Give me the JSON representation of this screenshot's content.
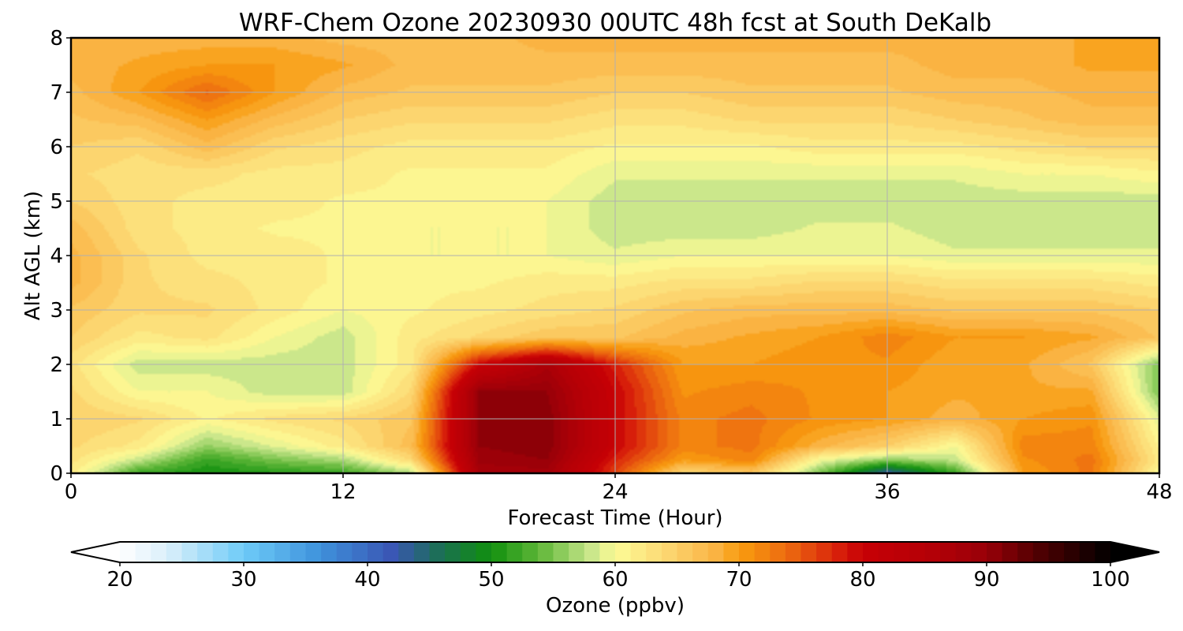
{
  "chart_data": {
    "type": "heatmap",
    "title": "WRF-Chem Ozone  20230930 00UTC 48h fcst at South DeKalb",
    "xlabel": "Forecast Time (Hour)",
    "ylabel": "Alt AGL (km)",
    "xlim": [
      0,
      48
    ],
    "ylim": [
      0,
      8
    ],
    "x_ticks": [
      0,
      12,
      24,
      36,
      48
    ],
    "y_ticks": [
      0,
      1,
      2,
      3,
      4,
      5,
      6,
      7,
      8
    ],
    "grid": true,
    "colorbar": {
      "label": "Ozone  (ppbv)",
      "min": 20,
      "max": 100,
      "ticks": [
        20,
        30,
        40,
        50,
        60,
        70,
        80,
        90,
        100
      ],
      "extend": "both",
      "color_stops": [
        {
          "value": 20,
          "color": "#ffffff"
        },
        {
          "value": 24,
          "color": "#d8eefa"
        },
        {
          "value": 30,
          "color": "#6ecbf8"
        },
        {
          "value": 36,
          "color": "#3f93dc"
        },
        {
          "value": 42,
          "color": "#3a56b4"
        },
        {
          "value": 46,
          "color": "#1a7050"
        },
        {
          "value": 50,
          "color": "#11900e"
        },
        {
          "value": 54,
          "color": "#62b83a"
        },
        {
          "value": 58,
          "color": "#c8e68a"
        },
        {
          "value": 60,
          "color": "#fcfb96"
        },
        {
          "value": 64,
          "color": "#fcd873"
        },
        {
          "value": 68,
          "color": "#fab445"
        },
        {
          "value": 70,
          "color": "#f99d0f"
        },
        {
          "value": 74,
          "color": "#ec6910"
        },
        {
          "value": 78,
          "color": "#d8200a"
        },
        {
          "value": 80,
          "color": "#c70005"
        },
        {
          "value": 86,
          "color": "#b20007"
        },
        {
          "value": 90,
          "color": "#980008"
        },
        {
          "value": 94,
          "color": "#520002"
        },
        {
          "value": 100,
          "color": "#000000"
        }
      ]
    },
    "field": {
      "x": [
        0,
        3,
        6,
        9,
        12,
        15,
        18,
        21,
        24,
        27,
        30,
        33,
        36,
        39,
        42,
        45,
        48
      ],
      "y": [
        0,
        0.25,
        0.5,
        1,
        1.5,
        2,
        2.5,
        3,
        3.5,
        4,
        4.5,
        5,
        5.5,
        6,
        6.5,
        7,
        7.5,
        8
      ],
      "values": [
        [
          62,
          52,
          50,
          51,
          52,
          57,
          88,
          88,
          76,
          64,
          66,
          55,
          42,
          52,
          70,
          73,
          60
        ],
        [
          63,
          58,
          52,
          55,
          57,
          64,
          89,
          90,
          78,
          70,
          72,
          60,
          56,
          58,
          71,
          73,
          62
        ],
        [
          64,
          62,
          56,
          59,
          62,
          67,
          90,
          91,
          80,
          72,
          73,
          68,
          65,
          60,
          72,
          72,
          61
        ],
        [
          65,
          64,
          61,
          63,
          64,
          66,
          90,
          91,
          80,
          72,
          73,
          71,
          70,
          68,
          70,
          71,
          59
        ],
        [
          64,
          60,
          60,
          58,
          58,
          64,
          90,
          90,
          80,
          71,
          72,
          71,
          70,
          69,
          69,
          69,
          55
        ],
        [
          63,
          58,
          58,
          58,
          58,
          62,
          80,
          87,
          78,
          70,
          70,
          71,
          71,
          69,
          69,
          66,
          55
        ],
        [
          65,
          62,
          63,
          60,
          58,
          62,
          64,
          66,
          66,
          68,
          69,
          70,
          72,
          70,
          70,
          69,
          66
        ],
        [
          66,
          64,
          64,
          62,
          60,
          61,
          62,
          63,
          64,
          66,
          67,
          67,
          67,
          66,
          66,
          66,
          65
        ],
        [
          68,
          64,
          63,
          62,
          61,
          61,
          61,
          62,
          62,
          63,
          63,
          64,
          64,
          63,
          63,
          63,
          62
        ],
        [
          68,
          64,
          62,
          62,
          61,
          60,
          60,
          60,
          59,
          60,
          60,
          60,
          60,
          59,
          59,
          59,
          59
        ],
        [
          67,
          63,
          62,
          61,
          61,
          60,
          60,
          60,
          58,
          58,
          58,
          59,
          59,
          58,
          58,
          58,
          58
        ],
        [
          65,
          63,
          62,
          62,
          61,
          61,
          61,
          60,
          58,
          58,
          58,
          58,
          58,
          58,
          58,
          58,
          58
        ],
        [
          64,
          63,
          63,
          62,
          62,
          61,
          61,
          61,
          59,
          59,
          59,
          59,
          59,
          59,
          60,
          60,
          61
        ],
        [
          65,
          64,
          67,
          64,
          63,
          62,
          62,
          62,
          61,
          61,
          61,
          62,
          62,
          62,
          63,
          64,
          64
        ],
        [
          66,
          67,
          70,
          67,
          65,
          64,
          64,
          64,
          63,
          63,
          64,
          64,
          64,
          65,
          66,
          67,
          67
        ],
        [
          67,
          70,
          74,
          70,
          67,
          66,
          66,
          66,
          65,
          65,
          66,
          66,
          66,
          67,
          67,
          68,
          68
        ],
        [
          68,
          69,
          70,
          70,
          69,
          67,
          67,
          67,
          67,
          67,
          67,
          67,
          67,
          68,
          68,
          69,
          69
        ],
        [
          68,
          68,
          68,
          68,
          67,
          67,
          67,
          68,
          68,
          68,
          68,
          68,
          68,
          68,
          68,
          69,
          70
        ]
      ]
    }
  }
}
